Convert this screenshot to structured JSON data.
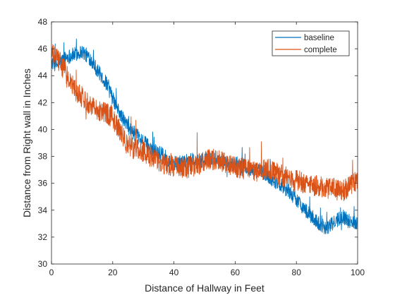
{
  "chart_data": {
    "type": "line",
    "title": "",
    "xlabel": "Distance of Hallway in Feet",
    "ylabel": "Distance from Right wall in Inches",
    "xlim": [
      0,
      100
    ],
    "ylim": [
      30,
      48
    ],
    "xticks": [
      0,
      20,
      40,
      60,
      80,
      100
    ],
    "yticks": [
      30,
      32,
      34,
      36,
      38,
      40,
      42,
      44,
      46,
      48
    ],
    "grid": false,
    "legend_position": "top-right",
    "series": [
      {
        "name": "baseline",
        "color": "#0072BD",
        "noise_amplitude": 0.55,
        "x": [
          0,
          2,
          5,
          8,
          10,
          13,
          15,
          18,
          20,
          22,
          25,
          28,
          30,
          32,
          35,
          38,
          40,
          42,
          45,
          48,
          50,
          52,
          55,
          58,
          60,
          63,
          65,
          68,
          70,
          72,
          75,
          78,
          80,
          83,
          85,
          88,
          90,
          92,
          95,
          97,
          100
        ],
        "y": [
          45.0,
          44.8,
          45.4,
          45.6,
          45.8,
          45.2,
          44.4,
          43.4,
          42.3,
          41.3,
          40.2,
          39.5,
          39.1,
          38.7,
          38.3,
          37.8,
          37.5,
          37.5,
          37.8,
          37.6,
          37.7,
          37.9,
          37.6,
          37.3,
          37.5,
          37.3,
          37.0,
          37.0,
          36.6,
          36.3,
          35.9,
          35.3,
          34.8,
          34.0,
          33.5,
          32.9,
          32.7,
          33.0,
          33.6,
          33.2,
          33.1
        ]
      },
      {
        "name": "complete",
        "color": "#D95319",
        "noise_amplitude": 0.8,
        "x": [
          0,
          2,
          4,
          6,
          8,
          10,
          12,
          15,
          18,
          20,
          22,
          25,
          28,
          30,
          32,
          35,
          38,
          40,
          42,
          45,
          48,
          50,
          52,
          55,
          58,
          60,
          63,
          65,
          68,
          70,
          72,
          75,
          78,
          80,
          83,
          85,
          88,
          90,
          92,
          95,
          97,
          100
        ],
        "y": [
          45.6,
          45.3,
          44.5,
          43.6,
          42.9,
          42.4,
          42.0,
          41.5,
          41.2,
          40.9,
          40.0,
          38.8,
          38.5,
          38.4,
          38.0,
          37.6,
          37.4,
          37.3,
          37.1,
          37.2,
          37.4,
          37.6,
          37.8,
          37.7,
          37.3,
          37.2,
          37.1,
          36.9,
          36.9,
          37.1,
          36.9,
          36.6,
          36.3,
          36.2,
          36.0,
          35.9,
          35.7,
          35.6,
          35.6,
          35.4,
          35.7,
          36.2
        ]
      }
    ]
  }
}
